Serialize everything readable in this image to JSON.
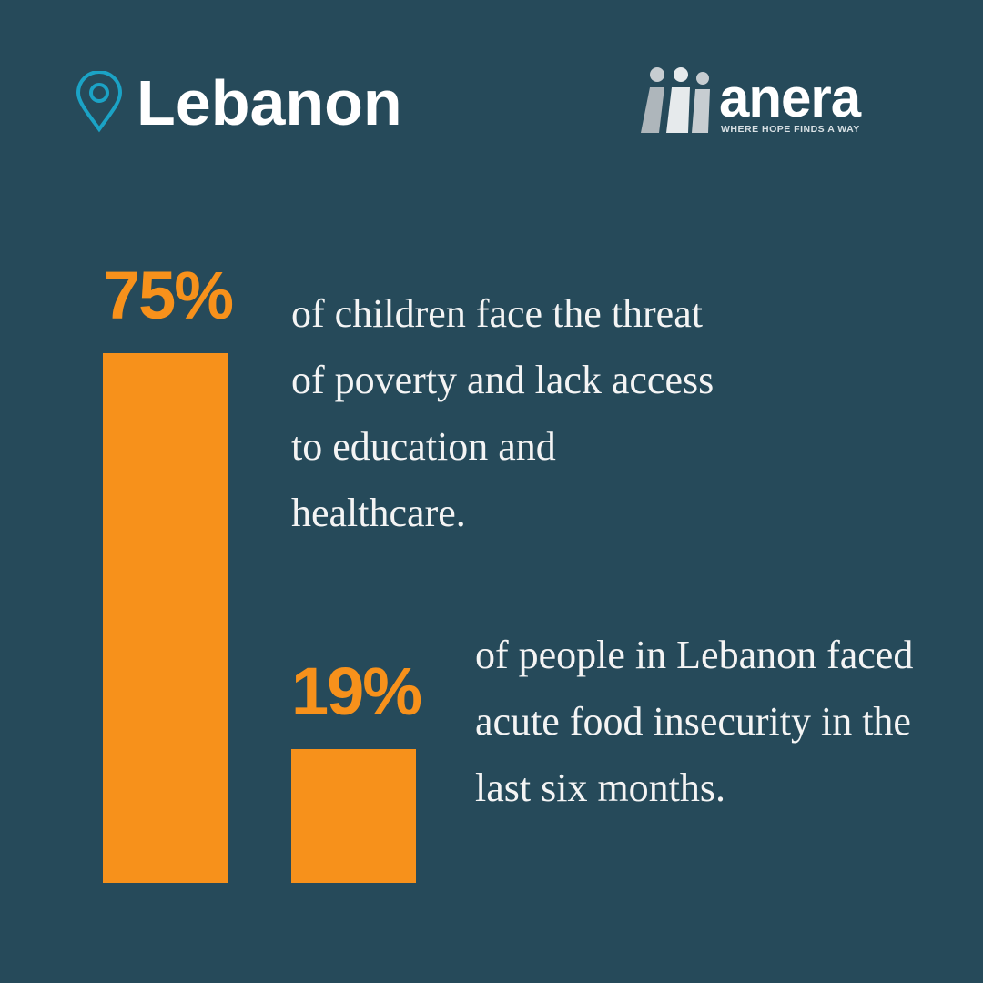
{
  "chart_data": {
    "type": "bar",
    "title": "Lebanon",
    "categories": [
      "of children face the threat of poverty and lack access to education and healthcare.",
      "of people in Lebanon faced acute food insecurity in the last six months."
    ],
    "values": [
      75,
      19
    ],
    "value_labels": [
      "75%",
      "19%"
    ],
    "color": "#f7911b"
  },
  "logo": {
    "name": "anera",
    "tagline": "WHERE HOPE FINDS A WAY"
  }
}
